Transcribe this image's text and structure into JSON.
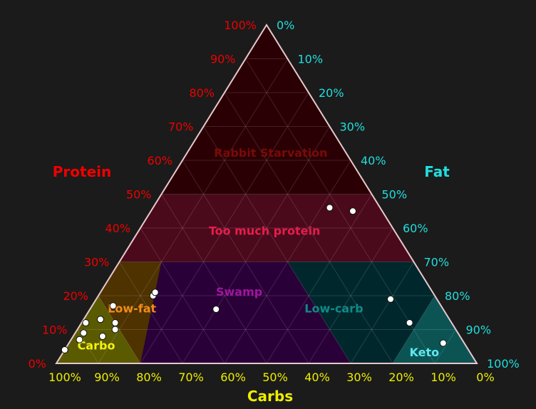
{
  "chart_data": {
    "type": "scatter",
    "subtype": "ternary",
    "axes": {
      "protein": {
        "label": "Protein",
        "color": "#ee0000"
      },
      "fat": {
        "label": "Fat",
        "color": "#22dddd"
      },
      "carbs": {
        "label": "Carbs",
        "color": "#eeee00"
      }
    },
    "ticks": {
      "protein": [
        "0%",
        "10%",
        "20%",
        "30%",
        "40%",
        "50%",
        "60%",
        "70%",
        "80%",
        "90%",
        "100%"
      ],
      "fat": [
        "0%",
        "10%",
        "20%",
        "30%",
        "40%",
        "50%",
        "60%",
        "70%",
        "80%",
        "90%",
        "100%"
      ],
      "carbs": [
        "100%",
        "90%",
        "80%",
        "70%",
        "60%",
        "50%",
        "40%",
        "30%",
        "20%",
        "10%",
        "0%"
      ]
    },
    "regions": [
      {
        "name": "Rabbit Starvation",
        "fill": "#2a0004",
        "label_color": "#7a0a0a",
        "corners": [
          {
            "p": 1.0,
            "f": 0.0
          },
          {
            "p": 0.5,
            "f": 0.5
          },
          {
            "p": 0.5,
            "f": 0.0
          }
        ],
        "label_at": {
          "p": 0.62,
          "f": 0.2
        }
      },
      {
        "name": "Too much protein",
        "fill": "#4a0a1c",
        "label_color": "#e81c4c",
        "corners": [
          {
            "p": 0.5,
            "f": 0.0
          },
          {
            "p": 0.5,
            "f": 0.5
          },
          {
            "p": 0.3,
            "f": 0.7
          },
          {
            "p": 0.3,
            "f": 0.0
          }
        ],
        "label_at": {
          "p": 0.39,
          "f": 0.3
        }
      },
      {
        "name": "Low-fat",
        "fill": "#4e3200",
        "label_color": "#f08c1c",
        "corners": [
          {
            "p": 0.3,
            "f": 0.0
          },
          {
            "p": 0.3,
            "f": 0.1
          },
          {
            "p": 0.0,
            "f": 0.2
          },
          {
            "p": 0.0,
            "f": 0.0
          }
        ],
        "label_at": {
          "p": 0.16,
          "f": 0.1
        }
      },
      {
        "name": "Swamp",
        "fill": "#2a0038",
        "label_color": "#a015a0",
        "corners": [
          {
            "p": 0.3,
            "f": 0.1
          },
          {
            "p": 0.3,
            "f": 0.4
          },
          {
            "p": 0.0,
            "f": 0.7
          },
          {
            "p": 0.0,
            "f": 0.2
          }
        ],
        "label_at": {
          "p": 0.21,
          "f": 0.33
        }
      },
      {
        "name": "Low-carb",
        "fill": "#00282c",
        "label_color": "#0f8a8a",
        "corners": [
          {
            "p": 0.3,
            "f": 0.4
          },
          {
            "p": 0.3,
            "f": 0.7
          },
          {
            "p": 0.2,
            "f": 0.8
          },
          {
            "p": 0.0,
            "f": 0.8
          },
          {
            "p": 0.0,
            "f": 0.7
          }
        ],
        "label_at": {
          "p": 0.16,
          "f": 0.58
        }
      },
      {
        "name": "Keto",
        "fill": "#0c5454",
        "label_color": "#5fe8f0",
        "corners": [
          {
            "p": 0.2,
            "f": 0.8
          },
          {
            "p": 0.0,
            "f": 1.0
          },
          {
            "p": 0.0,
            "f": 0.8
          }
        ],
        "label_at": {
          "p": 0.03,
          "f": 0.86
        }
      },
      {
        "name": "Carbo",
        "fill": "#5a5a00",
        "label_color": "#f2f20f",
        "corners": [
          {
            "p": 0.2,
            "f": 0.0
          },
          {
            "p": 0.0,
            "f": 0.2
          },
          {
            "p": 0.0,
            "f": 0.0
          }
        ],
        "label_at": {
          "p": 0.05,
          "f": 0.07
        }
      }
    ],
    "points": [
      {
        "protein": 46,
        "fat": 42
      },
      {
        "protein": 45,
        "fat": 48
      },
      {
        "protein": 20,
        "fat": 13
      },
      {
        "protein": 21,
        "fat": 13
      },
      {
        "protein": 17,
        "fat": 5
      },
      {
        "protein": 13,
        "fat": 4
      },
      {
        "protein": 12,
        "fat": 8
      },
      {
        "protein": 10,
        "fat": 9
      },
      {
        "protein": 12,
        "fat": 1
      },
      {
        "protein": 9,
        "fat": 2
      },
      {
        "protein": 7,
        "fat": 2
      },
      {
        "protein": 4,
        "fat": 0
      },
      {
        "protein": 8,
        "fat": 7
      },
      {
        "protein": 16,
        "fat": 30
      },
      {
        "protein": 19,
        "fat": 70
      },
      {
        "protein": 12,
        "fat": 78
      },
      {
        "protein": 6,
        "fat": 89
      }
    ],
    "grid": true
  }
}
